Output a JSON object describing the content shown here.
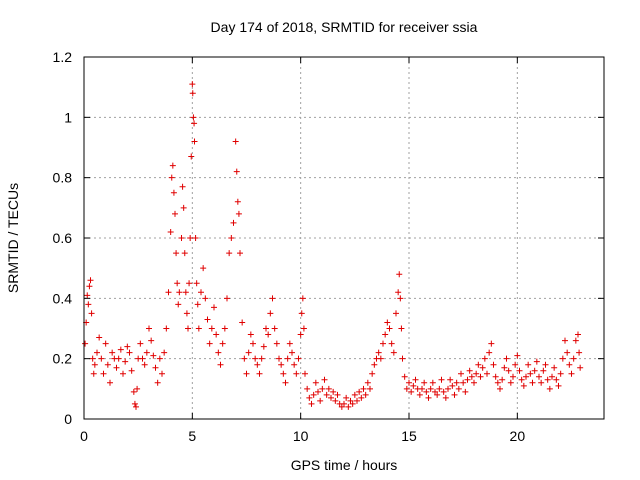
{
  "chart_data": {
    "type": "scatter",
    "title": "Day 174 of 2018, SRMTID for receiver ssia",
    "xlabel": "GPS time / hours",
    "ylabel": "SRMTID / TECUs",
    "xlim": [
      0,
      24
    ],
    "ylim": [
      0,
      1.2
    ],
    "xticks": [
      "0",
      "5",
      "10",
      "15",
      "20"
    ],
    "yticks": [
      "0",
      "0.2",
      "0.4",
      "0.6",
      "0.8",
      "1",
      "1.2"
    ],
    "grid": true,
    "marker": "plus",
    "color": "#e00000",
    "series": [
      {
        "name": "SRMTID",
        "points": [
          [
            0.05,
            0.25
          ],
          [
            0.1,
            0.32
          ],
          [
            0.15,
            0.41
          ],
          [
            0.2,
            0.38
          ],
          [
            0.25,
            0.44
          ],
          [
            0.3,
            0.46
          ],
          [
            0.35,
            0.35
          ],
          [
            0.4,
            0.2
          ],
          [
            0.45,
            0.15
          ],
          [
            0.5,
            0.18
          ],
          [
            0.6,
            0.22
          ],
          [
            0.7,
            0.27
          ],
          [
            0.8,
            0.2
          ],
          [
            0.9,
            0.15
          ],
          [
            1.0,
            0.25
          ],
          [
            1.1,
            0.18
          ],
          [
            1.2,
            0.12
          ],
          [
            1.3,
            0.22
          ],
          [
            1.4,
            0.2
          ],
          [
            1.5,
            0.17
          ],
          [
            1.6,
            0.2
          ],
          [
            1.7,
            0.23
          ],
          [
            1.8,
            0.15
          ],
          [
            1.9,
            0.19
          ],
          [
            2.0,
            0.24
          ],
          [
            2.1,
            0.22
          ],
          [
            2.2,
            0.16
          ],
          [
            2.3,
            0.09
          ],
          [
            2.35,
            0.05
          ],
          [
            2.4,
            0.04
          ],
          [
            2.45,
            0.1
          ],
          [
            2.5,
            0.2
          ],
          [
            2.6,
            0.25
          ],
          [
            2.7,
            0.2
          ],
          [
            2.8,
            0.18
          ],
          [
            2.9,
            0.22
          ],
          [
            3.0,
            0.3
          ],
          [
            3.1,
            0.26
          ],
          [
            3.2,
            0.21
          ],
          [
            3.3,
            0.17
          ],
          [
            3.4,
            0.12
          ],
          [
            3.5,
            0.2
          ],
          [
            3.6,
            0.15
          ],
          [
            3.7,
            0.22
          ],
          [
            3.8,
            0.3
          ],
          [
            3.9,
            0.42
          ],
          [
            4.0,
            0.62
          ],
          [
            4.05,
            0.8
          ],
          [
            4.1,
            0.84
          ],
          [
            4.15,
            0.75
          ],
          [
            4.2,
            0.68
          ],
          [
            4.25,
            0.55
          ],
          [
            4.3,
            0.45
          ],
          [
            4.35,
            0.38
          ],
          [
            4.4,
            0.42
          ],
          [
            4.5,
            0.6
          ],
          [
            4.55,
            0.77
          ],
          [
            4.6,
            0.7
          ],
          [
            4.65,
            0.55
          ],
          [
            4.7,
            0.42
          ],
          [
            4.75,
            0.35
          ],
          [
            4.8,
            0.3
          ],
          [
            4.85,
            0.45
          ],
          [
            4.9,
            0.6
          ],
          [
            4.95,
            0.87
          ],
          [
            5.0,
            1.11
          ],
          [
            5.02,
            1.08
          ],
          [
            5.05,
            1.0
          ],
          [
            5.08,
            0.98
          ],
          [
            5.1,
            0.92
          ],
          [
            5.15,
            0.6
          ],
          [
            5.2,
            0.45
          ],
          [
            5.25,
            0.38
          ],
          [
            5.3,
            0.3
          ],
          [
            5.4,
            0.42
          ],
          [
            5.5,
            0.5
          ],
          [
            5.6,
            0.4
          ],
          [
            5.7,
            0.33
          ],
          [
            5.8,
            0.25
          ],
          [
            5.9,
            0.3
          ],
          [
            6.0,
            0.37
          ],
          [
            6.1,
            0.28
          ],
          [
            6.2,
            0.22
          ],
          [
            6.3,
            0.18
          ],
          [
            6.4,
            0.25
          ],
          [
            6.5,
            0.3
          ],
          [
            6.6,
            0.4
          ],
          [
            6.7,
            0.55
          ],
          [
            6.8,
            0.6
          ],
          [
            6.9,
            0.65
          ],
          [
            7.0,
            0.92
          ],
          [
            7.05,
            0.82
          ],
          [
            7.1,
            0.72
          ],
          [
            7.15,
            0.68
          ],
          [
            7.2,
            0.55
          ],
          [
            7.3,
            0.32
          ],
          [
            7.4,
            0.2
          ],
          [
            7.5,
            0.15
          ],
          [
            7.6,
            0.22
          ],
          [
            7.7,
            0.28
          ],
          [
            7.8,
            0.25
          ],
          [
            7.9,
            0.2
          ],
          [
            8.0,
            0.18
          ],
          [
            8.1,
            0.15
          ],
          [
            8.2,
            0.2
          ],
          [
            8.3,
            0.24
          ],
          [
            8.4,
            0.3
          ],
          [
            8.5,
            0.28
          ],
          [
            8.6,
            0.35
          ],
          [
            8.7,
            0.4
          ],
          [
            8.8,
            0.3
          ],
          [
            8.9,
            0.25
          ],
          [
            9.0,
            0.2
          ],
          [
            9.1,
            0.18
          ],
          [
            9.2,
            0.15
          ],
          [
            9.3,
            0.12
          ],
          [
            9.4,
            0.2
          ],
          [
            9.5,
            0.25
          ],
          [
            9.6,
            0.22
          ],
          [
            9.7,
            0.18
          ],
          [
            9.8,
            0.15
          ],
          [
            9.9,
            0.2
          ],
          [
            10.0,
            0.28
          ],
          [
            10.05,
            0.35
          ],
          [
            10.1,
            0.4
          ],
          [
            10.15,
            0.3
          ],
          [
            10.2,
            0.15
          ],
          [
            10.3,
            0.1
          ],
          [
            10.4,
            0.07
          ],
          [
            10.5,
            0.05
          ],
          [
            10.6,
            0.08
          ],
          [
            10.7,
            0.12
          ],
          [
            10.8,
            0.09
          ],
          [
            10.9,
            0.06
          ],
          [
            11.0,
            0.1
          ],
          [
            11.1,
            0.13
          ],
          [
            11.2,
            0.08
          ],
          [
            11.3,
            0.1
          ],
          [
            11.4,
            0.07
          ],
          [
            11.5,
            0.09
          ],
          [
            11.6,
            0.06
          ],
          [
            11.7,
            0.08
          ],
          [
            11.8,
            0.05
          ],
          [
            11.9,
            0.04
          ],
          [
            12.0,
            0.05
          ],
          [
            12.1,
            0.07
          ],
          [
            12.2,
            0.04
          ],
          [
            12.3,
            0.06
          ],
          [
            12.4,
            0.05
          ],
          [
            12.5,
            0.08
          ],
          [
            12.6,
            0.06
          ],
          [
            12.7,
            0.09
          ],
          [
            12.8,
            0.07
          ],
          [
            12.9,
            0.1
          ],
          [
            13.0,
            0.08
          ],
          [
            13.1,
            0.12
          ],
          [
            13.2,
            0.1
          ],
          [
            13.3,
            0.15
          ],
          [
            13.4,
            0.18
          ],
          [
            13.5,
            0.2
          ],
          [
            13.6,
            0.22
          ],
          [
            13.7,
            0.2
          ],
          [
            13.8,
            0.25
          ],
          [
            13.9,
            0.28
          ],
          [
            14.0,
            0.32
          ],
          [
            14.1,
            0.3
          ],
          [
            14.2,
            0.25
          ],
          [
            14.3,
            0.22
          ],
          [
            14.4,
            0.35
          ],
          [
            14.5,
            0.42
          ],
          [
            14.55,
            0.48
          ],
          [
            14.6,
            0.4
          ],
          [
            14.65,
            0.3
          ],
          [
            14.7,
            0.2
          ],
          [
            14.8,
            0.14
          ],
          [
            14.9,
            0.1
          ],
          [
            15.0,
            0.12
          ],
          [
            15.1,
            0.09
          ],
          [
            15.2,
            0.11
          ],
          [
            15.3,
            0.13
          ],
          [
            15.4,
            0.1
          ],
          [
            15.5,
            0.08
          ],
          [
            15.6,
            0.1
          ],
          [
            15.7,
            0.12
          ],
          [
            15.8,
            0.09
          ],
          [
            15.9,
            0.07
          ],
          [
            16.0,
            0.1
          ],
          [
            16.1,
            0.12
          ],
          [
            16.2,
            0.09
          ],
          [
            16.3,
            0.08
          ],
          [
            16.4,
            0.1
          ],
          [
            16.5,
            0.13
          ],
          [
            16.6,
            0.09
          ],
          [
            16.7,
            0.07
          ],
          [
            16.8,
            0.1
          ],
          [
            16.9,
            0.13
          ],
          [
            17.0,
            0.11
          ],
          [
            17.1,
            0.08
          ],
          [
            17.2,
            0.12
          ],
          [
            17.3,
            0.1
          ],
          [
            17.4,
            0.15
          ],
          [
            17.5,
            0.12
          ],
          [
            17.6,
            0.09
          ],
          [
            17.7,
            0.13
          ],
          [
            17.8,
            0.16
          ],
          [
            17.9,
            0.14
          ],
          [
            18.0,
            0.12
          ],
          [
            18.1,
            0.15
          ],
          [
            18.2,
            0.18
          ],
          [
            18.3,
            0.14
          ],
          [
            18.4,
            0.17
          ],
          [
            18.5,
            0.2
          ],
          [
            18.6,
            0.15
          ],
          [
            18.7,
            0.22
          ],
          [
            18.8,
            0.25
          ],
          [
            18.9,
            0.18
          ],
          [
            19.0,
            0.14
          ],
          [
            19.1,
            0.12
          ],
          [
            19.2,
            0.1
          ],
          [
            19.3,
            0.13
          ],
          [
            19.4,
            0.17
          ],
          [
            19.5,
            0.2
          ],
          [
            19.6,
            0.16
          ],
          [
            19.7,
            0.12
          ],
          [
            19.8,
            0.14
          ],
          [
            19.9,
            0.18
          ],
          [
            20.0,
            0.21
          ],
          [
            20.1,
            0.16
          ],
          [
            20.2,
            0.13
          ],
          [
            20.3,
            0.11
          ],
          [
            20.4,
            0.14
          ],
          [
            20.5,
            0.18
          ],
          [
            20.6,
            0.15
          ],
          [
            20.7,
            0.12
          ],
          [
            20.8,
            0.16
          ],
          [
            20.9,
            0.19
          ],
          [
            21.0,
            0.14
          ],
          [
            21.1,
            0.12
          ],
          [
            21.2,
            0.16
          ],
          [
            21.3,
            0.18
          ],
          [
            21.4,
            0.13
          ],
          [
            21.5,
            0.1
          ],
          [
            21.6,
            0.14
          ],
          [
            21.7,
            0.17
          ],
          [
            21.8,
            0.13
          ],
          [
            21.9,
            0.11
          ],
          [
            22.0,
            0.15
          ],
          [
            22.1,
            0.2
          ],
          [
            22.2,
            0.26
          ],
          [
            22.3,
            0.22
          ],
          [
            22.4,
            0.18
          ],
          [
            22.5,
            0.15
          ],
          [
            22.6,
            0.2
          ],
          [
            22.7,
            0.26
          ],
          [
            22.8,
            0.28
          ],
          [
            22.85,
            0.22
          ],
          [
            22.9,
            0.17
          ]
        ]
      }
    ]
  }
}
